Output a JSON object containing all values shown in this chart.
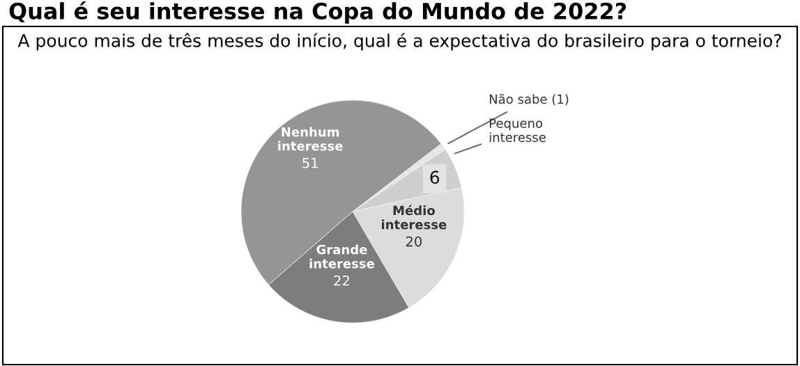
{
  "chart_data": {
    "type": "pie",
    "title": "Qual é seu interesse na Copa do Mundo de 2022?",
    "subtitle": "A pouco mais de três meses do início, qual é a expectativa do brasileiro para o torneio?",
    "categories": [
      "Não sabe",
      "Pequeno interesse",
      "Médio interesse",
      "Grande interesse",
      "Nenhum interesse"
    ],
    "values": [
      1,
      6,
      20,
      22,
      51
    ],
    "value_labels": [
      "(1)",
      "6",
      "20",
      "22",
      "51"
    ],
    "colors": [
      "#e6e6e6",
      "#cfcfcf",
      "#dcdcdc",
      "#7d7d7d",
      "#959595"
    ]
  }
}
